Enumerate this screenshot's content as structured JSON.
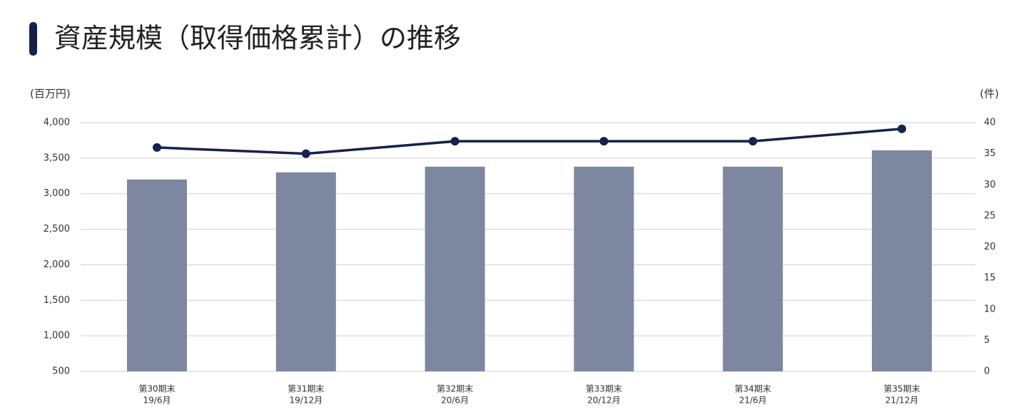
{
  "chart_data": {
    "type": "bar-line",
    "title": "資産規模（取得価格累計）の推移",
    "y_label": "(百万円)",
    "y2_label": "(件)",
    "categories": [
      [
        "第30期末",
        "19/6月"
      ],
      [
        "第31期末",
        "19/12月"
      ],
      [
        "第32期末",
        "20/6月"
      ],
      [
        "第33期末",
        "20/12月"
      ],
      [
        "第34期末",
        "21/6月"
      ],
      [
        "第35期末",
        "21/12月"
      ]
    ],
    "series": [
      {
        "type": "bar",
        "color": "#7d879f",
        "values": [
          3200,
          3300,
          3380,
          3380,
          3380,
          3610
        ]
      },
      {
        "type": "line",
        "axis": "y2",
        "color": "#15234a",
        "values": [
          36,
          35,
          37,
          37,
          37,
          39
        ]
      }
    ],
    "ylim": [
      500,
      4000
    ],
    "yticks": [
      500,
      {
        "value": 1000,
        "label": "1,000"
      },
      {
        "value": 1500,
        "label": "1,500"
      },
      {
        "value": 2000,
        "label": "2,000"
      },
      {
        "value": 2500,
        "label": "2,500"
      },
      {
        "value": 3000,
        "label": "3,000"
      },
      {
        "value": 3500,
        "label": "3,500"
      },
      {
        "value": 4000,
        "label": "4,000"
      }
    ],
    "y2lim": [
      0,
      40
    ],
    "y2ticks": [
      0,
      5,
      10,
      15,
      20,
      25,
      30,
      35,
      40
    ],
    "grid": true
  }
}
